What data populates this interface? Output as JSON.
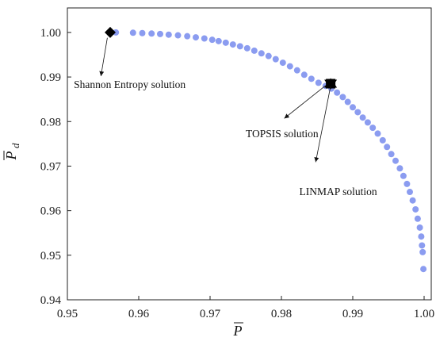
{
  "chart_data": {
    "type": "scatter",
    "xlabel": "P",
    "ylabel": "P",
    "ylabel_subscript": "d",
    "xlim": [
      0.95,
      1.001
    ],
    "ylim": [
      0.94,
      1.0055
    ],
    "x_ticks": [
      "0.95",
      "0.96",
      "0.97",
      "0.98",
      "0.99",
      "1.00"
    ],
    "y_ticks": [
      "0.94",
      "0.95",
      "0.96",
      "0.97",
      "0.98",
      "0.99",
      "1.00"
    ],
    "grid": false,
    "point_color": "#8b9cf0",
    "marker_color": "#000000",
    "series": [
      {
        "values": [
          [
            0.9568,
            1.0
          ],
          [
            0.9592,
            0.99993
          ],
          [
            0.9605,
            0.99985
          ],
          [
            0.9618,
            0.99975
          ],
          [
            0.963,
            0.99965
          ],
          [
            0.9642,
            0.9995
          ],
          [
            0.9655,
            0.99935
          ],
          [
            0.9668,
            0.99915
          ],
          [
            0.968,
            0.9989
          ],
          [
            0.9692,
            0.99865
          ],
          [
            0.9703,
            0.99835
          ],
          [
            0.9712,
            0.99805
          ],
          [
            0.9722,
            0.9977
          ],
          [
            0.9732,
            0.9973
          ],
          [
            0.9742,
            0.9969
          ],
          [
            0.9752,
            0.99645
          ],
          [
            0.9762,
            0.9959
          ],
          [
            0.9772,
            0.9953
          ],
          [
            0.9782,
            0.9947
          ],
          [
            0.9792,
            0.994
          ],
          [
            0.9802,
            0.9932
          ],
          [
            0.9812,
            0.9924
          ],
          [
            0.9822,
            0.9915
          ],
          [
            0.9832,
            0.9905
          ],
          [
            0.9842,
            0.9896
          ],
          [
            0.9852,
            0.9887
          ],
          [
            0.9862,
            0.988
          ],
          [
            0.987,
            0.9874
          ],
          [
            0.9878,
            0.9865
          ],
          [
            0.9886,
            0.9855
          ],
          [
            0.9893,
            0.9844
          ],
          [
            0.99,
            0.9832
          ],
          [
            0.9907,
            0.9821
          ],
          [
            0.9914,
            0.9809
          ],
          [
            0.9921,
            0.9798
          ],
          [
            0.9928,
            0.9786
          ],
          [
            0.9935,
            0.9773
          ],
          [
            0.9942,
            0.9758
          ],
          [
            0.9948,
            0.9743
          ],
          [
            0.9954,
            0.9727
          ],
          [
            0.996,
            0.9712
          ],
          [
            0.9966,
            0.9695
          ],
          [
            0.9971,
            0.9678
          ],
          [
            0.9976,
            0.966
          ],
          [
            0.998,
            0.9642
          ],
          [
            0.9984,
            0.9623
          ],
          [
            0.9988,
            0.9603
          ],
          [
            0.9991,
            0.9582
          ],
          [
            0.9994,
            0.9562
          ],
          [
            0.9996,
            0.9542
          ],
          [
            0.9997,
            0.9522
          ],
          [
            0.9998,
            0.9507
          ],
          [
            0.9999,
            0.9469
          ]
        ]
      }
    ],
    "annotations": [
      {
        "label": "Shannon Entropy solution",
        "point": [
          0.956,
          1.0
        ],
        "marker": "diamond",
        "arrow_tail": [
          0.9556,
          0.9988
        ],
        "arrow_head": [
          0.9547,
          0.9902
        ],
        "text_anchor": [
          0.9509,
          0.9875
        ]
      },
      {
        "label": "TOPSIS solution",
        "point": [
          0.9869,
          0.9885
        ],
        "marker": "square",
        "arrow_tail": [
          0.9862,
          0.9881
        ],
        "arrow_head": [
          0.9804,
          0.9807
        ],
        "text_anchor": [
          0.975,
          0.9765
        ]
      },
      {
        "label": "LINMAP  solution",
        "point": [
          0.9869,
          0.9885
        ],
        "marker": "triangle",
        "arrow_tail": [
          0.9869,
          0.988
        ],
        "arrow_head": [
          0.9848,
          0.9709
        ],
        "text_anchor": [
          0.9825,
          0.9635
        ]
      }
    ]
  }
}
